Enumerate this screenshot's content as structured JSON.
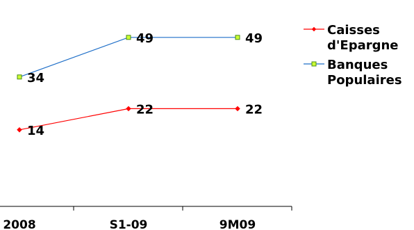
{
  "chart_data": {
    "type": "line",
    "categories": [
      "2008",
      "S1-09",
      "9M09"
    ],
    "series": [
      {
        "name": "Caisses d'Epargne",
        "legend_lines": [
          "Caisses",
          "d'Epargne"
        ],
        "values": [
          14,
          22,
          22
        ],
        "color": "#ff0000",
        "marker": "diamond"
      },
      {
        "name": "Banques Populaires",
        "legend_lines": [
          "Banques",
          "Populaires"
        ],
        "values": [
          34,
          49,
          49
        ],
        "color": "#1f6fc8",
        "marker": "square",
        "marker_fill": "#ccff33"
      }
    ],
    "ylim": [
      0,
      55
    ],
    "grid": false,
    "legend": "right",
    "data_labels": true
  }
}
